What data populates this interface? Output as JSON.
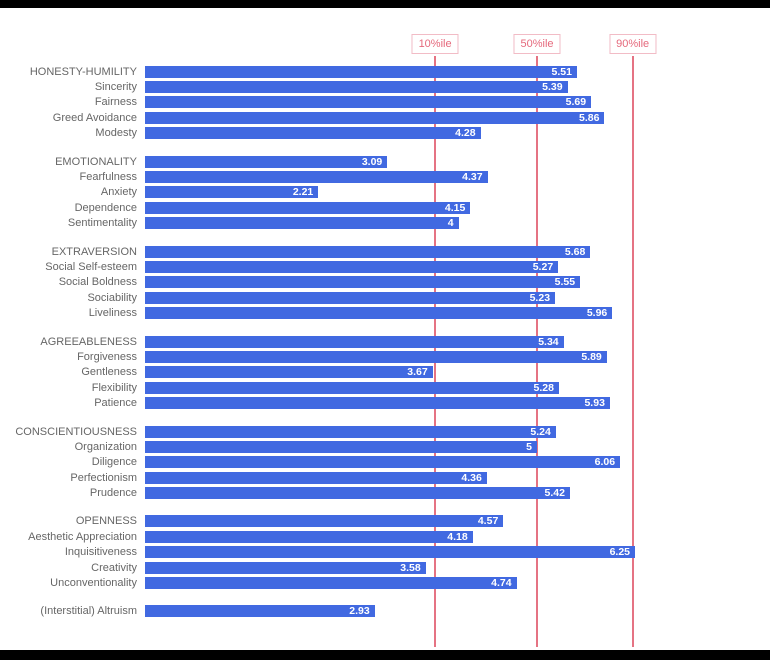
{
  "chart_data": {
    "type": "bar",
    "orientation": "horizontal",
    "title": "",
    "xlabel": "",
    "ylabel": "",
    "xlim": [
      0,
      7
    ],
    "grid": false,
    "bar_color": "#4169e1",
    "line_color": "#e57383",
    "percentile_lines": [
      {
        "label": "10%ile",
        "value": 3.7
      },
      {
        "label": "50%ile",
        "value": 5.0
      },
      {
        "label": "90%ile",
        "value": 6.22
      }
    ],
    "groups": [
      {
        "items": [
          {
            "label": "HONESTY-HUMILITY",
            "value": 5.51,
            "display": "5.51"
          },
          {
            "label": "Sincerity",
            "value": 5.39,
            "display": "5.39"
          },
          {
            "label": "Fairness",
            "value": 5.69,
            "display": "5.69"
          },
          {
            "label": "Greed Avoidance",
            "value": 5.86,
            "display": "5.86"
          },
          {
            "label": "Modesty",
            "value": 4.28,
            "display": "4.28"
          }
        ]
      },
      {
        "items": [
          {
            "label": "EMOTIONALITY",
            "value": 3.09,
            "display": "3.09"
          },
          {
            "label": "Fearfulness",
            "value": 4.37,
            "display": "4.37"
          },
          {
            "label": "Anxiety",
            "value": 2.21,
            "display": "2.21"
          },
          {
            "label": "Dependence",
            "value": 4.15,
            "display": "4.15"
          },
          {
            "label": "Sentimentality",
            "value": 4.0,
            "display": "4"
          }
        ]
      },
      {
        "items": [
          {
            "label": "EXTRAVERSION",
            "value": 5.68,
            "display": "5.68"
          },
          {
            "label": "Social Self-esteem",
            "value": 5.27,
            "display": "5.27"
          },
          {
            "label": "Social Boldness",
            "value": 5.55,
            "display": "5.55"
          },
          {
            "label": "Sociability",
            "value": 5.23,
            "display": "5.23"
          },
          {
            "label": "Liveliness",
            "value": 5.96,
            "display": "5.96"
          }
        ]
      },
      {
        "items": [
          {
            "label": "AGREEABLENESS",
            "value": 5.34,
            "display": "5.34"
          },
          {
            "label": "Forgiveness",
            "value": 5.89,
            "display": "5.89"
          },
          {
            "label": "Gentleness",
            "value": 3.67,
            "display": "3.67"
          },
          {
            "label": "Flexibility",
            "value": 5.28,
            "display": "5.28"
          },
          {
            "label": "Patience",
            "value": 5.93,
            "display": "5.93"
          }
        ]
      },
      {
        "items": [
          {
            "label": "CONSCIENTIOUSNESS",
            "value": 5.24,
            "display": "5.24"
          },
          {
            "label": "Organization",
            "value": 5.0,
            "display": "5"
          },
          {
            "label": "Diligence",
            "value": 6.06,
            "display": "6.06"
          },
          {
            "label": "Perfectionism",
            "value": 4.36,
            "display": "4.36"
          },
          {
            "label": "Prudence",
            "value": 5.42,
            "display": "5.42"
          }
        ]
      },
      {
        "items": [
          {
            "label": "OPENNESS",
            "value": 4.57,
            "display": "4.57"
          },
          {
            "label": "Aesthetic Appreciation",
            "value": 4.18,
            "display": "4.18"
          },
          {
            "label": "Inquisitiveness",
            "value": 6.25,
            "display": "6.25"
          },
          {
            "label": "Creativity",
            "value": 3.58,
            "display": "3.58"
          },
          {
            "label": "Unconventionality",
            "value": 4.74,
            "display": "4.74"
          }
        ]
      },
      {
        "items": [
          {
            "label": "(Interstitial) Altruism",
            "value": 2.93,
            "display": "2.93"
          }
        ]
      }
    ]
  }
}
